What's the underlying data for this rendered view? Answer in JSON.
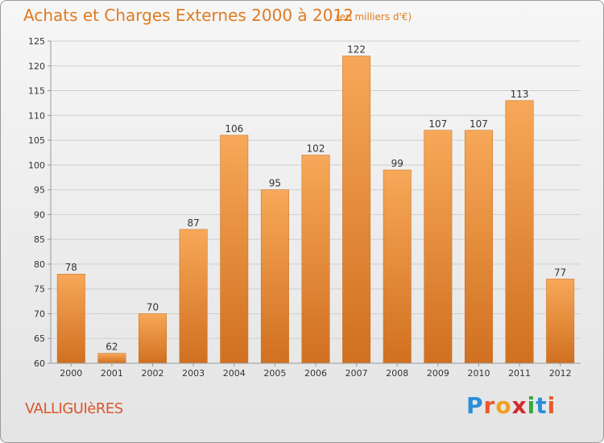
{
  "header": {
    "title": "Achats et Charges Externes 2000 à 2012",
    "subtitle": "(en milliers d'€)"
  },
  "footer": {
    "place": "VALLIGUIèRES",
    "logo_letters": [
      "P",
      "r",
      "o",
      "x",
      "i",
      "t",
      "i"
    ],
    "logo_colors": [
      "#2a8fd8",
      "#e85a2a",
      "#f0a020",
      "#d42a2a",
      "#3aa83a",
      "#2a8fd8",
      "#e85a2a"
    ]
  },
  "chart_data": {
    "type": "bar",
    "title": "Achats et Charges Externes 2000 à 2012",
    "subtitle": "(en milliers d'€)",
    "categories": [
      "2000",
      "2001",
      "2002",
      "2003",
      "2004",
      "2005",
      "2006",
      "2007",
      "2008",
      "2009",
      "2010",
      "2011",
      "2012"
    ],
    "values": [
      78,
      62,
      70,
      87,
      106,
      95,
      102,
      122,
      99,
      107,
      107,
      113,
      77
    ],
    "ylim": [
      60,
      125
    ],
    "yticks": [
      60,
      65,
      70,
      75,
      80,
      85,
      90,
      95,
      100,
      105,
      110,
      115,
      120,
      125
    ],
    "grid": true,
    "bar_color": "#f0902f",
    "bar_color_light": "#f7a858",
    "bar_color_dark": "#d07020"
  }
}
